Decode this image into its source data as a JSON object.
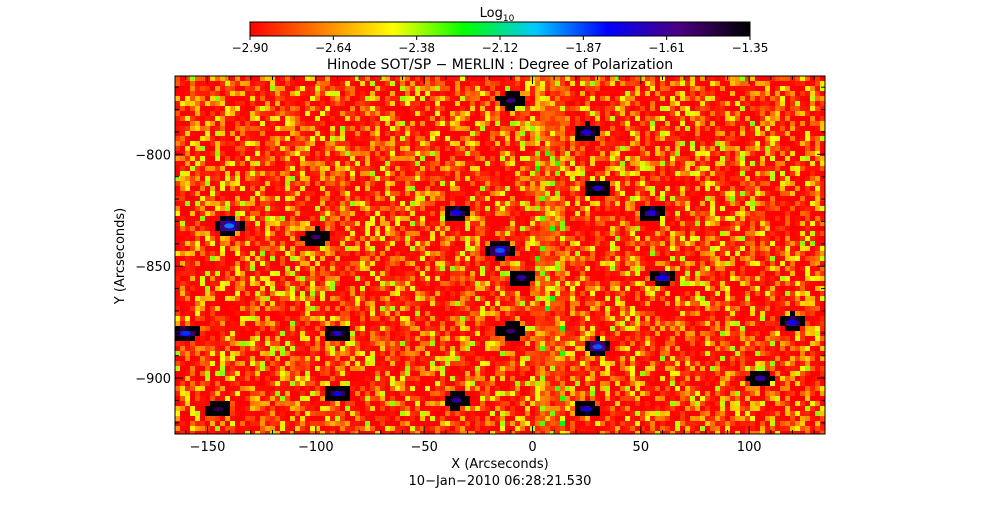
{
  "colorbar": {
    "label": "Log",
    "label_sub": "10",
    "ticks": [
      "−2.90",
      "−2.64",
      "−2.38",
      "−2.12",
      "−1.87",
      "−1.61",
      "−1.35"
    ],
    "range": [
      -2.9,
      -1.35
    ],
    "colors": [
      "#ff0000",
      "#ff8000",
      "#ffff00",
      "#00ff00",
      "#00c8ff",
      "#0000ff",
      "#4b0082",
      "#000000"
    ]
  },
  "chart_data": {
    "type": "heatmap",
    "title": "Hinode SOT/SP − MERLIN : Degree of Polarization",
    "xlabel": "X (Arcseconds)",
    "ylabel": "Y (Arcseconds)",
    "xlim": [
      -165,
      135
    ],
    "ylim": [
      -925,
      -765
    ],
    "xticks": [
      -150,
      -100,
      -50,
      0,
      50,
      100
    ],
    "yticks": [
      -800,
      -850,
      -900
    ],
    "xtick_labels": [
      "−150",
      "−100",
      "−50",
      "0",
      "50",
      "100"
    ],
    "ytick_labels": [
      "−800",
      "−850",
      "−900"
    ],
    "value_description": "Log10 degree of polarization",
    "strong_features": [
      {
        "x": -10,
        "y": -776,
        "v": -1.6
      },
      {
        "x": 25,
        "y": -790,
        "v": -1.75
      },
      {
        "x": 30,
        "y": -815,
        "v": -1.7
      },
      {
        "x": 55,
        "y": -826,
        "v": -1.75
      },
      {
        "x": -35,
        "y": -826,
        "v": -1.8
      },
      {
        "x": -100,
        "y": -837,
        "v": -1.55
      },
      {
        "x": -15,
        "y": -843,
        "v": -1.9
      },
      {
        "x": -5,
        "y": -855,
        "v": -1.65
      },
      {
        "x": 60,
        "y": -855,
        "v": -1.8
      },
      {
        "x": -90,
        "y": -880,
        "v": -1.7
      },
      {
        "x": -10,
        "y": -879,
        "v": -1.55
      },
      {
        "x": -90,
        "y": -907,
        "v": -1.75
      },
      {
        "x": -35,
        "y": -910,
        "v": -1.65
      },
      {
        "x": -145,
        "y": -914,
        "v": -1.5
      },
      {
        "x": 25,
        "y": -914,
        "v": -1.75
      },
      {
        "x": 105,
        "y": -900,
        "v": -1.65
      },
      {
        "x": 120,
        "y": -875,
        "v": -1.8
      },
      {
        "x": -160,
        "y": -880,
        "v": -1.85
      },
      {
        "x": -140,
        "y": -832,
        "v": -1.95
      },
      {
        "x": 30,
        "y": -886,
        "v": -1.9
      }
    ]
  },
  "timestamp": "10−Jan−2010 06:28:21.530"
}
